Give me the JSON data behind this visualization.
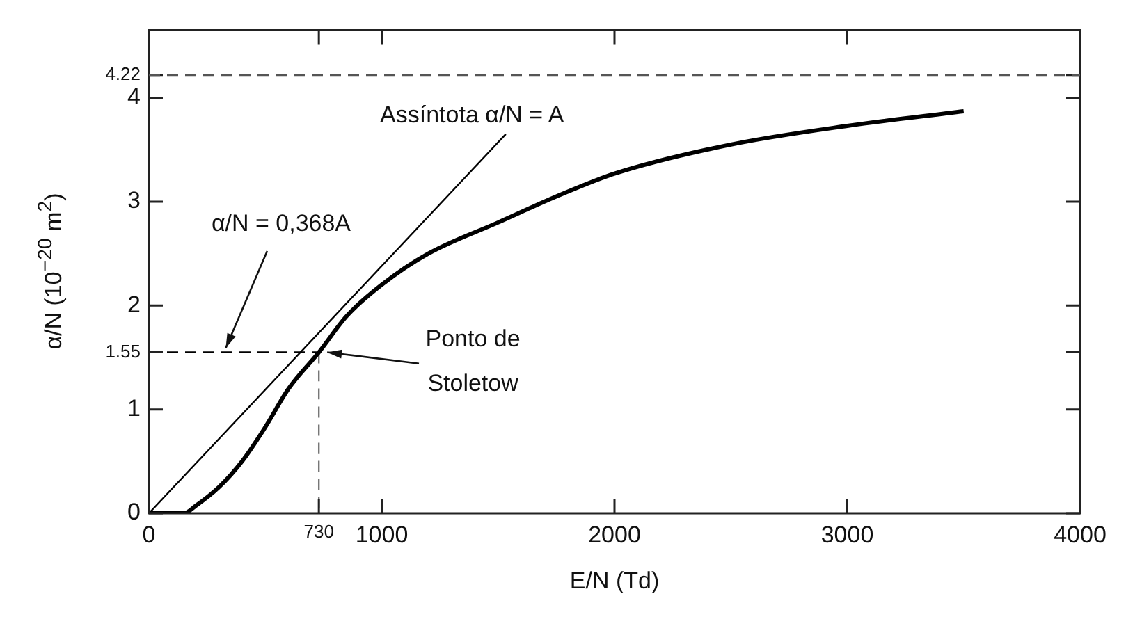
{
  "chart_data": {
    "type": "line",
    "xlabel": "E/N (Td)",
    "ylabel": "α/N (10$^{−20}$ m$^{2}$)",
    "xlim": [
      0,
      4000
    ],
    "ylim": [
      0,
      4.65
    ],
    "xticks": [
      0,
      730,
      1000,
      2000,
      3000,
      4000
    ],
    "yticks": [
      0,
      1,
      1.55,
      2,
      3,
      4,
      4.22
    ],
    "series": [
      {
        "color": "#000000",
        "x": [
          0,
          150,
          200,
          300,
          400,
          500,
          600,
          730,
          850,
          1000,
          1200,
          1500,
          1750,
          2000,
          2500,
          3000,
          3500
        ],
        "values": [
          0,
          0,
          0.07,
          0.25,
          0.5,
          0.83,
          1.2,
          1.55,
          1.9,
          2.2,
          2.5,
          2.8,
          3.05,
          3.27,
          3.55,
          3.73,
          3.87
        ]
      },
      {
        "color": "#000000",
        "x": [
          0,
          1533
        ],
        "values": [
          0,
          3.65
        ]
      },
      {
        "color": "#000000",
        "x": [
          0,
          730
        ],
        "values": [
          1.55,
          1.55
        ],
        "line_style": "dashed"
      },
      {
        "color": "#777777",
        "x": [
          730,
          730
        ],
        "values": [
          1.55,
          0
        ],
        "line_style": "dashed"
      }
    ],
    "ref_lines": [
      {
        "axis": "y",
        "value": 4.22,
        "color": "#555555",
        "line_style": "dashed"
      }
    ],
    "annotations": [
      "Assíntota α/N = A",
      {
        "text": "α/N = 0,368A",
        "x": 330,
        "y": 1.55
      },
      {
        "text": "Ponto de Stoletow",
        "x": 730,
        "y": 1.55
      }
    ],
    "grid": false,
    "legend": false,
    "marker": "none",
    "line_style": "solid"
  }
}
